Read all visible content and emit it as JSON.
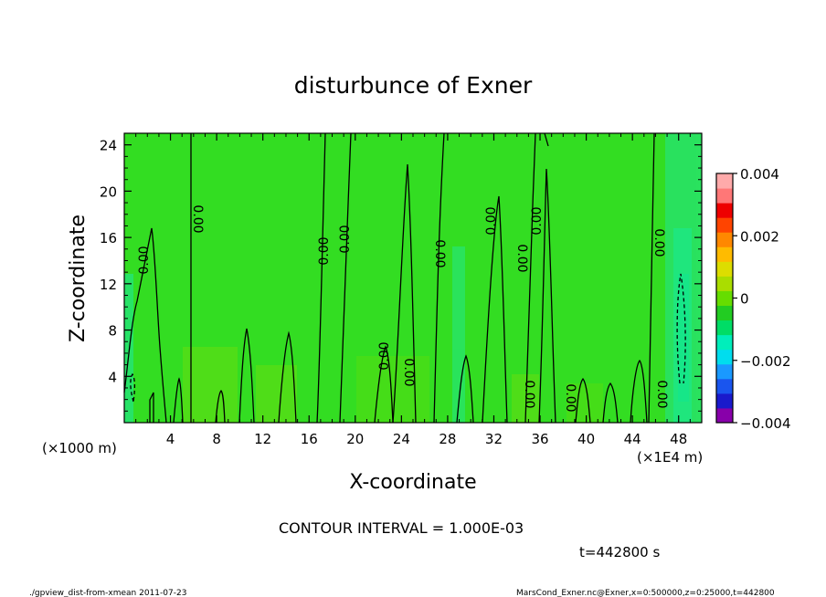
{
  "chart_data": {
    "type": "heatmap",
    "title": "disturbunce of Exner",
    "xlabel": "X-coordinate",
    "ylabel": "Z-coordinate",
    "x_unit_left": "(×1000 m)",
    "x_unit_right": "(×1E4 m)",
    "xlim": [
      0,
      50
    ],
    "ylim": [
      0,
      25
    ],
    "x_ticks": [
      4,
      8,
      12,
      16,
      20,
      24,
      28,
      32,
      36,
      40,
      44,
      48
    ],
    "x_tick_labels": [
      "4",
      "8",
      "12",
      "16",
      "20",
      "24",
      "28",
      "32",
      "36",
      "40",
      "44",
      "48"
    ],
    "y_ticks": [
      4,
      8,
      12,
      16,
      20,
      24
    ],
    "y_tick_labels": [
      "4",
      "8",
      "12",
      "16",
      "20",
      "24"
    ],
    "colorbar": {
      "range": [
        -0.004,
        0.004
      ],
      "ticks": [
        0.004,
        0.002,
        0,
        -0.002,
        -0.004
      ],
      "tick_labels": [
        "0.004",
        "0.002",
        "0",
        "−0.002",
        "−0.004"
      ],
      "colors": [
        "#8800aa",
        "#1a1acc",
        "#1a55ee",
        "#1a99ff",
        "#00ddee",
        "#00eebb",
        "#00dd66",
        "#22cc22",
        "#66dd00",
        "#aadd00",
        "#dddd00",
        "#ffbb00",
        "#ff8800",
        "#ff4400",
        "#ee0000",
        "#ff7777",
        "#ffaaaa"
      ]
    },
    "contour_interval": "CONTOUR INTERVAL = 1.000E-03",
    "contour_level_label": "0.00",
    "time_label": "t=442800 s"
  },
  "footer": {
    "left": "./gpview_dist-from-xmean  2011-07-23",
    "right": "MarsCond_Exner.nc@Exner,x=0:500000,z=0:25000,t=442800"
  },
  "colors": {
    "background": "#33dd22",
    "contour": "#000000"
  }
}
